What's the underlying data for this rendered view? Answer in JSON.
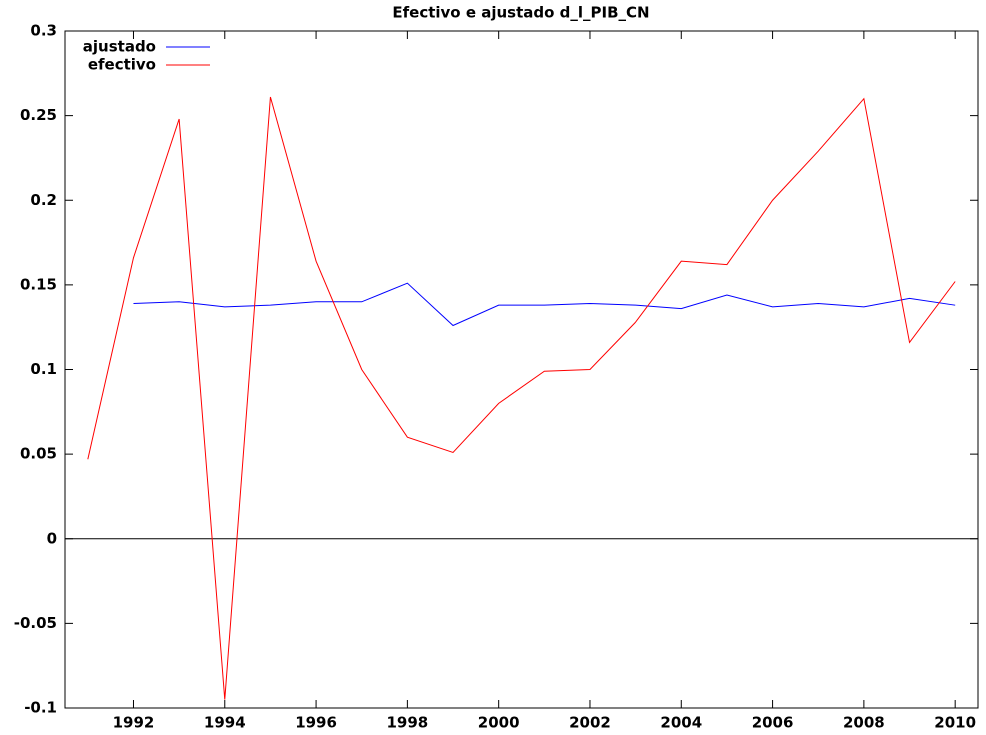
{
  "chart_data": {
    "type": "line",
    "title": "Efectivo e ajustado d_l_PIB_CN",
    "x": [
      1991,
      1992,
      1993,
      1994,
      1995,
      1996,
      1997,
      1998,
      1999,
      2000,
      2001,
      2002,
      2003,
      2004,
      2005,
      2006,
      2007,
      2008,
      2009,
      2010
    ],
    "series": [
      {
        "name": "ajustado",
        "color": "#0000ff",
        "values": [
          null,
          0.139,
          0.14,
          0.137,
          0.138,
          0.14,
          0.14,
          0.151,
          0.126,
          0.138,
          0.138,
          0.139,
          0.138,
          0.136,
          0.144,
          0.137,
          0.139,
          0.137,
          0.142,
          0.138
        ]
      },
      {
        "name": "efectivo",
        "color": "#ff0000",
        "values": [
          0.047,
          0.166,
          0.248,
          -0.095,
          0.261,
          0.164,
          0.1,
          0.06,
          0.051,
          0.08,
          0.099,
          0.1,
          0.128,
          0.164,
          0.162,
          0.2,
          0.229,
          0.26,
          0.116,
          0.152
        ]
      }
    ],
    "xlim": [
      1990.5,
      2010.5
    ],
    "xticks": [
      1992,
      1994,
      1996,
      1998,
      2000,
      2002,
      2004,
      2006,
      2008,
      2010
    ],
    "ylim": [
      -0.1,
      0.3
    ],
    "yticks": [
      -0.1,
      -0.05,
      0,
      0.05,
      0.1,
      0.15,
      0.2,
      0.25,
      0.3
    ],
    "zeroaxis": true,
    "legend": "upper-left"
  }
}
